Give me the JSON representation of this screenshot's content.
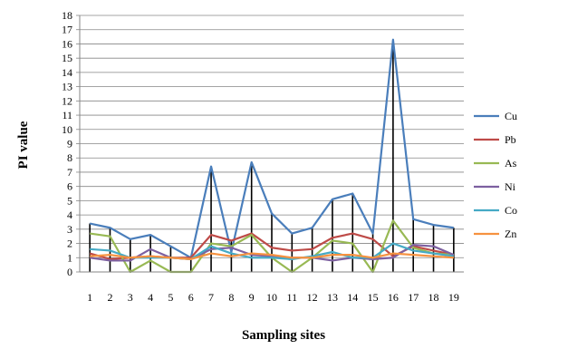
{
  "chart_data": {
    "type": "line",
    "xlabel": "Sampling sites",
    "ylabel": "PI value",
    "ylim": [
      0,
      18
    ],
    "yticks": [
      0,
      1,
      2,
      3,
      4,
      5,
      6,
      7,
      8,
      9,
      10,
      11,
      12,
      13,
      14,
      15,
      16,
      17,
      18
    ],
    "grid": true,
    "legend_position": "right",
    "x": [
      1,
      2,
      3,
      4,
      5,
      6,
      7,
      8,
      9,
      10,
      11,
      12,
      13,
      14,
      15,
      16,
      17,
      18,
      19
    ],
    "x_labels": [
      "1",
      "2",
      "3",
      "4",
      "5",
      "6",
      "7",
      "8",
      "9",
      "10",
      "11",
      "12",
      "13",
      "14",
      "15",
      "16",
      "17",
      "18",
      "19"
    ],
    "series": [
      {
        "name": "Cu",
        "color": "#4A7EBB",
        "values": [
          3.4,
          3.1,
          2.3,
          2.6,
          1.8,
          1.0,
          7.4,
          1.4,
          7.7,
          4.1,
          2.7,
          3.1,
          5.1,
          5.5,
          2.7,
          16.3,
          3.7,
          3.3,
          3.1
        ]
      },
      {
        "name": "Pb",
        "color": "#BE4B48",
        "values": [
          1.3,
          0.9,
          1.0,
          1.1,
          1.0,
          1.0,
          2.6,
          2.2,
          2.7,
          1.7,
          1.5,
          1.6,
          2.4,
          2.7,
          2.3,
          1.1,
          1.8,
          1.5,
          1.2
        ]
      },
      {
        "name": "As",
        "color": "#98B954",
        "values": [
          2.7,
          2.5,
          0.0,
          0.8,
          0.0,
          0.0,
          2.0,
          1.8,
          2.6,
          1.0,
          0.0,
          1.0,
          2.2,
          2.0,
          0.0,
          3.6,
          1.7,
          1.3,
          1.2
        ]
      },
      {
        "name": "Ni",
        "color": "#7D60A0",
        "values": [
          1.0,
          0.8,
          0.8,
          1.6,
          1.0,
          0.9,
          1.6,
          1.7,
          1.2,
          1.1,
          1.0,
          1.0,
          0.8,
          1.0,
          0.9,
          1.0,
          1.9,
          1.8,
          1.2
        ]
      },
      {
        "name": "Co",
        "color": "#46AAC5",
        "values": [
          1.6,
          1.5,
          1.0,
          1.0,
          1.0,
          0.9,
          1.8,
          1.3,
          1.0,
          1.0,
          0.9,
          1.1,
          1.4,
          1.0,
          1.0,
          2.0,
          1.5,
          1.3,
          1.1
        ]
      },
      {
        "name": "Zn",
        "color": "#F69240",
        "values": [
          1.1,
          1.2,
          1.0,
          1.1,
          1.0,
          0.9,
          1.3,
          1.1,
          1.3,
          1.2,
          1.0,
          1.0,
          1.2,
          1.2,
          1.0,
          1.3,
          1.2,
          1.1,
          1.0
        ]
      }
    ]
  }
}
